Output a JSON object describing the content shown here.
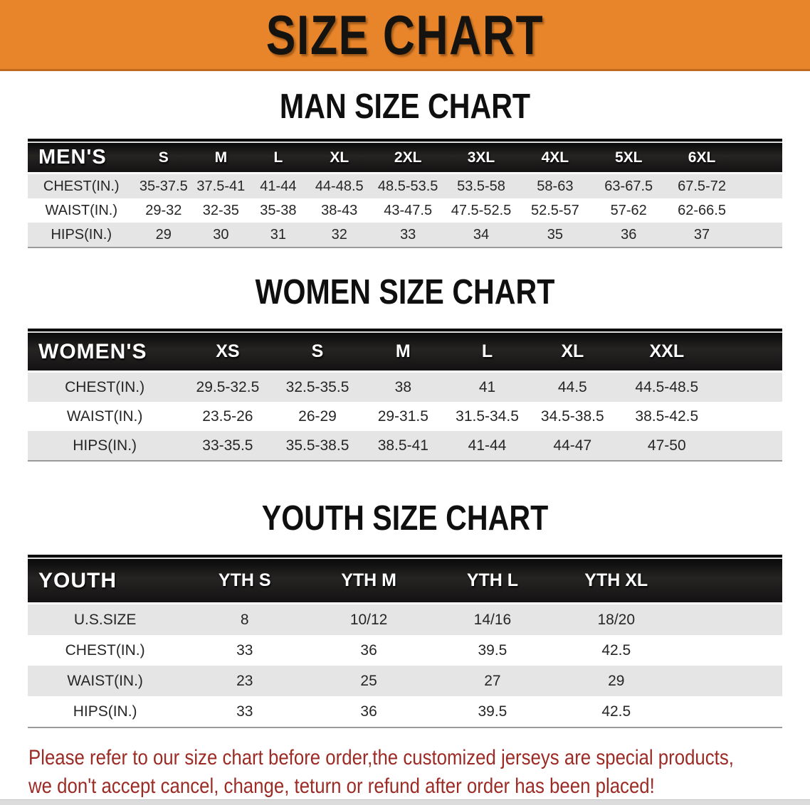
{
  "banner": {
    "title": "SIZE CHART"
  },
  "colors": {
    "banner_bg": "#E8852B",
    "banner_edge": "#C06A20",
    "table_header_bg": "#161616",
    "row_stripe": "#E5E5E5",
    "disclaimer_text": "#9B2B24",
    "bottom_bar": "#DCDCDC"
  },
  "sections": [
    {
      "id": "men",
      "title": "MAN SIZE CHART",
      "table": {
        "columns": [
          "MEN'S",
          "S",
          "M",
          "L",
          "XL",
          "2XL",
          "3XL",
          "4XL",
          "5XL",
          "6XL"
        ],
        "rows": [
          {
            "label": "CHEST(IN.)",
            "values": [
              "35-37.5",
              "37.5-41",
              "41-44",
              "44-48.5",
              "48.5-53.5",
              "53.5-58",
              "58-63",
              "63-67.5",
              "67.5-72"
            ]
          },
          {
            "label": "WAIST(IN.)",
            "values": [
              "29-32",
              "32-35",
              "35-38",
              "38-43",
              "43-47.5",
              "47.5-52.5",
              "52.5-57",
              "57-62",
              "62-66.5"
            ]
          },
          {
            "label": "HIPS(IN.)",
            "values": [
              "29",
              "30",
              "31",
              "32",
              "33",
              "34",
              "35",
              "36",
              "37"
            ]
          }
        ]
      }
    },
    {
      "id": "women",
      "title": "WOMEN SIZE CHART",
      "table": {
        "columns": [
          "WOMEN'S",
          "XS",
          "S",
          "M",
          "L",
          "XL",
          "XXL"
        ],
        "rows": [
          {
            "label": "CHEST(IN.)",
            "values": [
              "29.5-32.5",
              "32.5-35.5",
              "38",
              "41",
              "44.5",
              "44.5-48.5"
            ]
          },
          {
            "label": "WAIST(IN.)",
            "values": [
              "23.5-26",
              "26-29",
              "29-31.5",
              "31.5-34.5",
              "34.5-38.5",
              "38.5-42.5"
            ]
          },
          {
            "label": "HIPS(IN.)",
            "values": [
              "33-35.5",
              "35.5-38.5",
              "38.5-41",
              "41-44",
              "44-47",
              "47-50"
            ]
          }
        ]
      }
    },
    {
      "id": "youth",
      "title": "YOUTH SIZE CHART",
      "table": {
        "columns": [
          "YOUTH",
          "YTH S",
          "YTH M",
          "YTH L",
          "YTH XL"
        ],
        "rows": [
          {
            "label": "U.S.SIZE",
            "values": [
              "8",
              "10/12",
              "14/16",
              "18/20"
            ]
          },
          {
            "label": "CHEST(IN.)",
            "values": [
              "33",
              "36",
              "39.5",
              "42.5"
            ]
          },
          {
            "label": "WAIST(IN.)",
            "values": [
              "23",
              "25",
              "27",
              "29"
            ]
          },
          {
            "label": "HIPS(IN.)",
            "values": [
              "33",
              "36",
              "39.5",
              "42.5"
            ]
          }
        ]
      }
    }
  ],
  "disclaimer": {
    "lines": [
      "Please refer to our size chart before order,the customized jerseys are special products,",
      "we don't accept cancel, change, teturn or refund after order has been placed!"
    ]
  },
  "chart_data": [
    {
      "type": "table",
      "title": "MAN SIZE CHART",
      "columns": [
        "MEN'S",
        "S",
        "M",
        "L",
        "XL",
        "2XL",
        "3XL",
        "4XL",
        "5XL",
        "6XL"
      ],
      "rows": [
        [
          "CHEST(IN.)",
          "35-37.5",
          "37.5-41",
          "41-44",
          "44-48.5",
          "48.5-53.5",
          "53.5-58",
          "58-63",
          "63-67.5",
          "67.5-72"
        ],
        [
          "WAIST(IN.)",
          "29-32",
          "32-35",
          "35-38",
          "38-43",
          "43-47.5",
          "47.5-52.5",
          "52.5-57",
          "57-62",
          "62-66.5"
        ],
        [
          "HIPS(IN.)",
          "29",
          "30",
          "31",
          "32",
          "33",
          "34",
          "35",
          "36",
          "37"
        ]
      ]
    },
    {
      "type": "table",
      "title": "WOMEN SIZE CHART",
      "columns": [
        "WOMEN'S",
        "XS",
        "S",
        "M",
        "L",
        "XL",
        "XXL"
      ],
      "rows": [
        [
          "CHEST(IN.)",
          "29.5-32.5",
          "32.5-35.5",
          "38",
          "41",
          "44.5",
          "44.5-48.5"
        ],
        [
          "WAIST(IN.)",
          "23.5-26",
          "26-29",
          "29-31.5",
          "31.5-34.5",
          "34.5-38.5",
          "38.5-42.5"
        ],
        [
          "HIPS(IN.)",
          "33-35.5",
          "35.5-38.5",
          "38.5-41",
          "41-44",
          "44-47",
          "47-50"
        ]
      ]
    },
    {
      "type": "table",
      "title": "YOUTH SIZE CHART",
      "columns": [
        "YOUTH",
        "YTH S",
        "YTH M",
        "YTH L",
        "YTH XL"
      ],
      "rows": [
        [
          "U.S.SIZE",
          "8",
          "10/12",
          "14/16",
          "18/20"
        ],
        [
          "CHEST(IN.)",
          "33",
          "36",
          "39.5",
          "42.5"
        ],
        [
          "WAIST(IN.)",
          "23",
          "25",
          "27",
          "29"
        ],
        [
          "HIPS(IN.)",
          "33",
          "36",
          "39.5",
          "42.5"
        ]
      ]
    }
  ]
}
